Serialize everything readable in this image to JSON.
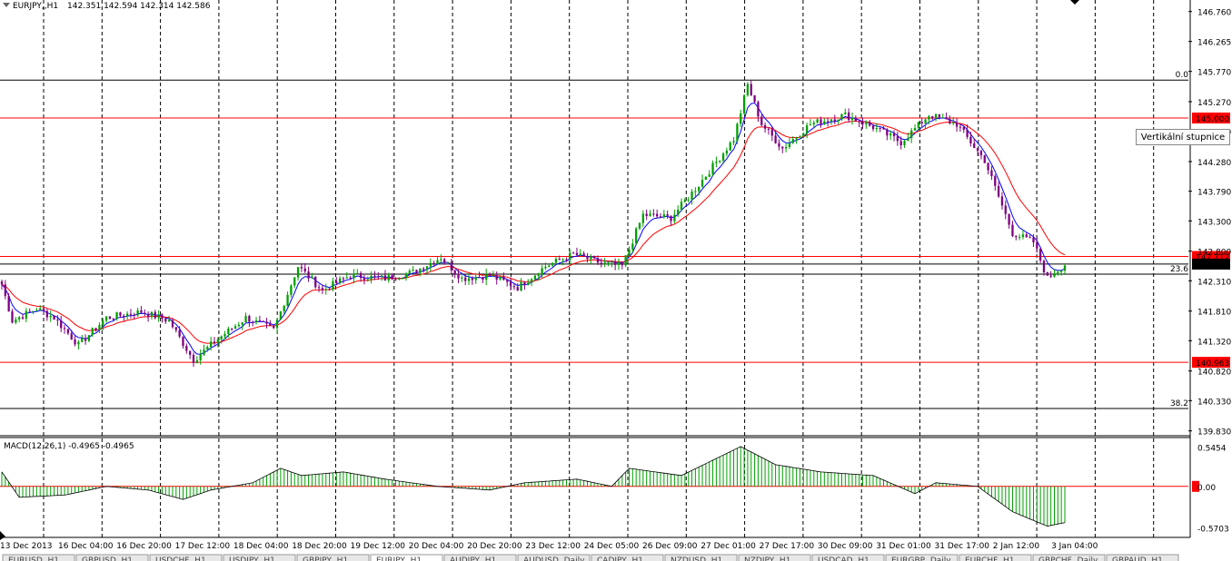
{
  "chart_header": {
    "symbol": "EURJPY,,H1",
    "ohlc": "142.351 142.594 142.314 142.586"
  },
  "price_axis": {
    "ticks": [
      "146.760",
      "146.265",
      "145.770",
      "145.270",
      "144.780",
      "144.280",
      "143.790",
      "143.300",
      "142.800",
      "142.310",
      "141.810",
      "141.320",
      "140.820",
      "140.330",
      "139.830"
    ],
    "tick_values": [
      146.76,
      146.265,
      145.77,
      145.27,
      144.78,
      144.28,
      143.79,
      143.3,
      142.8,
      142.31,
      141.81,
      141.32,
      140.82,
      140.33,
      139.83
    ],
    "range": [
      139.75,
      146.95
    ]
  },
  "levels": {
    "black": [
      {
        "value": 145.627,
        "label": "0.0"
      },
      {
        "value": 142.42,
        "label": "23.6"
      },
      {
        "value": 140.2,
        "label": "38.2"
      }
    ],
    "red": [
      {
        "value": 145.0,
        "label": "145.000"
      },
      {
        "value": 142.712,
        "label": "142.712"
      },
      {
        "value": 140.963,
        "label": "140.963"
      }
    ],
    "current_price": {
      "value": 142.586,
      "label": "142.586"
    }
  },
  "tooltip": "Vertikální stupnice",
  "macd": {
    "label": "MACD(12,26,1) -0.4965 -0.4965",
    "axis_ticks": [
      "0.5454",
      "0.00",
      "-0.5703"
    ],
    "axis_values": [
      0.5454,
      0,
      -0.5703
    ],
    "range": [
      -0.68,
      0.65
    ],
    "zero_label": "0.00"
  },
  "time_axis": [
    "13 Dec 2013",
    "16 Dec 04:00",
    "16 Dec 20:00",
    "17 Dec 12:00",
    "18 Dec 04:00",
    "18 Dec 20:00",
    "19 Dec 12:00",
    "20 Dec 04:00",
    "20 Dec 20:00",
    "23 Dec 12:00",
    "24 Dec 05:00",
    "26 Dec 09:00",
    "27 Dec 01:00",
    "27 Dec 17:00",
    "30 Dec 09:00",
    "31 Dec 01:00",
    "31 Dec 17:00",
    "2 Jan 12:00",
    "3 Jan 04:00"
  ],
  "tabs": [
    "EURUSD,,H1",
    "GBPUSD,,H1",
    "USDCHF,,H1",
    "USDJPY,,H1",
    "GBPJPY,,H1",
    "EURJPY,,H1",
    "AUDJPY,,H1",
    "AUDUSD,,Daily",
    "CADJPY,,H1",
    "NZDUSD,,H1",
    "NZDJPY,,H1",
    "USDCAD,,H1",
    "EURGBP,,Daily",
    "EURCHF,,H1",
    "GBPCHF,,Daily",
    "GBPAUD,,H1"
  ],
  "active_tab": "EURJPY,,H1",
  "colors": {
    "up_candle": "#00a000",
    "down_candle": "#800080",
    "ma_fast": "#0000ff",
    "ma_slow": "#ff0000",
    "red_level": "#ff0000",
    "price_tag_bg": "#ff0000",
    "current_tag_bg": "#000000",
    "macd_bars": "#00a000"
  },
  "chart_data": {
    "type": "candlestick",
    "series_close_anchors": [
      [
        0,
        142.25
      ],
      [
        3,
        141.65
      ],
      [
        10,
        141.85
      ],
      [
        15,
        141.7
      ],
      [
        22,
        141.25
      ],
      [
        30,
        141.7
      ],
      [
        40,
        141.8
      ],
      [
        48,
        141.65
      ],
      [
        55,
        141.0
      ],
      [
        62,
        141.35
      ],
      [
        70,
        141.7
      ],
      [
        78,
        141.5
      ],
      [
        85,
        142.55
      ],
      [
        92,
        142.15
      ],
      [
        100,
        142.4
      ],
      [
        110,
        142.35
      ],
      [
        118,
        142.45
      ],
      [
        126,
        142.7
      ],
      [
        132,
        142.35
      ],
      [
        140,
        142.4
      ],
      [
        148,
        142.2
      ],
      [
        156,
        142.55
      ],
      [
        164,
        142.75
      ],
      [
        172,
        142.6
      ],
      [
        178,
        142.55
      ],
      [
        184,
        143.4
      ],
      [
        192,
        143.35
      ],
      [
        200,
        143.9
      ],
      [
        210,
        144.65
      ],
      [
        214,
        145.55
      ],
      [
        218,
        144.9
      ],
      [
        224,
        144.5
      ],
      [
        232,
        144.9
      ],
      [
        242,
        145.05
      ],
      [
        250,
        144.85
      ],
      [
        258,
        144.6
      ],
      [
        266,
        145.05
      ],
      [
        274,
        144.9
      ],
      [
        282,
        144.3
      ],
      [
        290,
        143.1
      ],
      [
        296,
        142.95
      ],
      [
        300,
        142.35
      ],
      [
        305,
        142.58
      ]
    ],
    "n_candles": 306,
    "macd_anchors": [
      [
        0,
        0.2
      ],
      [
        5,
        -0.15
      ],
      [
        18,
        -0.12
      ],
      [
        30,
        0.0
      ],
      [
        42,
        -0.05
      ],
      [
        52,
        -0.18
      ],
      [
        60,
        -0.05
      ],
      [
        72,
        0.05
      ],
      [
        80,
        0.25
      ],
      [
        86,
        0.15
      ],
      [
        98,
        0.2
      ],
      [
        110,
        0.1
      ],
      [
        125,
        0.0
      ],
      [
        140,
        -0.05
      ],
      [
        150,
        0.05
      ],
      [
        165,
        0.1
      ],
      [
        175,
        0.0
      ],
      [
        180,
        0.25
      ],
      [
        195,
        0.15
      ],
      [
        212,
        0.55
      ],
      [
        222,
        0.3
      ],
      [
        235,
        0.2
      ],
      [
        250,
        0.15
      ],
      [
        262,
        -0.1
      ],
      [
        268,
        0.05
      ],
      [
        280,
        0.0
      ],
      [
        290,
        -0.35
      ],
      [
        300,
        -0.55
      ],
      [
        305,
        -0.5
      ]
    ]
  }
}
